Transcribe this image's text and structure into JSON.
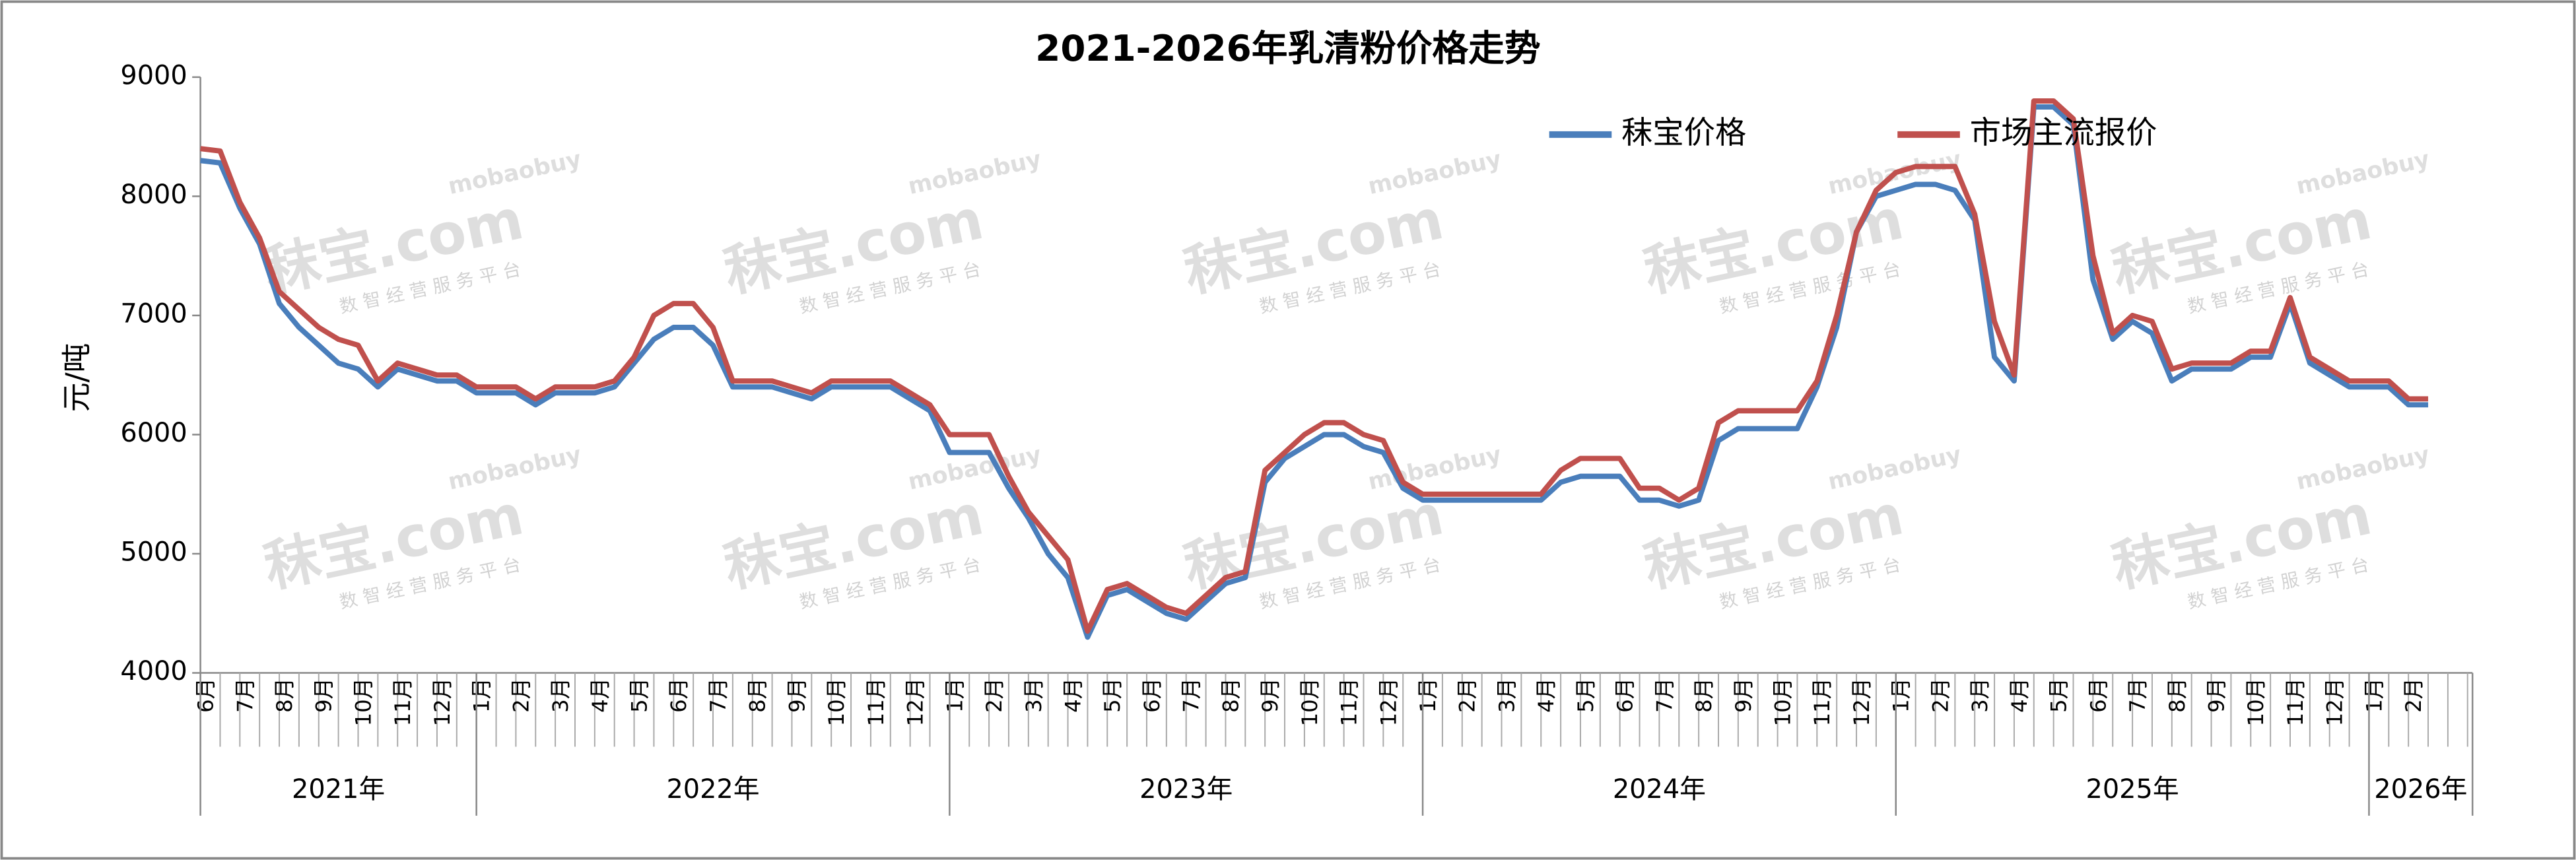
{
  "chart_data": {
    "type": "line",
    "title": "2021-2026年乳清粉价格走势",
    "y_label": "元/吨",
    "categories": [
      "6月",
      null,
      "7月",
      null,
      "8月",
      null,
      "9月",
      null,
      "10月",
      null,
      "11月",
      null,
      "12月",
      null,
      "1月",
      null,
      "2月",
      null,
      "3月",
      null,
      "4月",
      null,
      "5月",
      null,
      "6月",
      null,
      "7月",
      null,
      "8月",
      null,
      "9月",
      null,
      "10月",
      null,
      "11月",
      null,
      "12月",
      null,
      "1月",
      null,
      "2月",
      null,
      "3月",
      null,
      "4月",
      null,
      "5月",
      null,
      "6月",
      null,
      "7月",
      null,
      "8月",
      null,
      "9月",
      null,
      "10月",
      null,
      "11月",
      null,
      "12月",
      null,
      "1月",
      null,
      "2月",
      null,
      "3月",
      null,
      "4月",
      null,
      "5月",
      null,
      "6月",
      null,
      "7月",
      null,
      "8月",
      null,
      "9月",
      null,
      "10月",
      null,
      "11月",
      null,
      "12月",
      null,
      "1月",
      null,
      "2月",
      null,
      "3月",
      null,
      "4月",
      null,
      "5月",
      null,
      "6月",
      null,
      "7月",
      null,
      "8月",
      null,
      "9月",
      null,
      "10月",
      null,
      "11月",
      null,
      "12月",
      null,
      "1月",
      null,
      "2月",
      null
    ],
    "year_labels": [
      "2021年",
      "2022年",
      "2023年",
      "2024年",
      "2025年",
      "2026年"
    ],
    "series": [
      {
        "name": "秣宝价格",
        "color": "#4a7ebb",
        "values": [
          8300,
          8280,
          7900,
          7600,
          7100,
          6900,
          6750,
          6600,
          6550,
          6400,
          6550,
          6500,
          6450,
          6450,
          6350,
          6350,
          6350,
          6250,
          6350,
          6350,
          6350,
          6400,
          6600,
          6800,
          6900,
          6900,
          6750,
          6400,
          6400,
          6400,
          6350,
          6300,
          6400,
          6400,
          6400,
          6400,
          6300,
          6200,
          5850,
          5850,
          5850,
          5550,
          5300,
          5000,
          4800,
          4300,
          4650,
          4700,
          4600,
          4500,
          4450,
          4600,
          4750,
          4800,
          5600,
          5800,
          5900,
          6000,
          6000,
          5900,
          5850,
          5550,
          5450,
          5450,
          5450,
          5450,
          5450,
          5450,
          5450,
          5600,
          5650,
          5650,
          5650,
          5450,
          5450,
          5400,
          5450,
          5950,
          6050,
          6050,
          6050,
          6050,
          6400,
          6900,
          7700,
          8000,
          8050,
          8100,
          8100,
          8050,
          7800,
          6650,
          6450,
          8750,
          8750,
          8600,
          7300,
          6800,
          6950,
          6850,
          6450,
          6550,
          6550,
          6550,
          6650,
          6650,
          7100,
          6600,
          6500,
          6400,
          6400,
          6400,
          6250,
          6250
        ]
      },
      {
        "name": "市场主流报价",
        "color": "#c0504d",
        "values": [
          8400,
          8380,
          7950,
          7650,
          7200,
          7050,
          6900,
          6800,
          6750,
          6450,
          6600,
          6550,
          6500,
          6500,
          6400,
          6400,
          6400,
          6300,
          6400,
          6400,
          6400,
          6450,
          6650,
          7000,
          7100,
          7100,
          6900,
          6450,
          6450,
          6450,
          6400,
          6350,
          6450,
          6450,
          6450,
          6450,
          6350,
          6250,
          6000,
          6000,
          6000,
          5650,
          5350,
          5150,
          4950,
          4350,
          4700,
          4750,
          4650,
          4550,
          4500,
          4650,
          4800,
          4850,
          5700,
          5850,
          6000,
          6100,
          6100,
          6000,
          5950,
          5600,
          5500,
          5500,
          5500,
          5500,
          5500,
          5500,
          5500,
          5700,
          5800,
          5800,
          5800,
          5550,
          5550,
          5450,
          5550,
          6100,
          6200,
          6200,
          6200,
          6200,
          6450,
          7000,
          7700,
          8050,
          8200,
          8250,
          8250,
          8250,
          7850,
          6950,
          6500,
          8800,
          8800,
          8650,
          7500,
          6850,
          7000,
          6950,
          6550,
          6600,
          6600,
          6600,
          6700,
          6700,
          7150,
          6650,
          6550,
          6450,
          6450,
          6450,
          6300,
          6300
        ]
      }
    ],
    "ylim": [
      4000,
      9000
    ],
    "yticks": [
      4000,
      5000,
      6000,
      7000,
      8000,
      9000
    ],
    "legend": "top-right",
    "watermark": {
      "brand": "秣宝.com",
      "domain": "mobaobuy",
      "slogan": "数 智 经 营 服 务 平 台"
    }
  }
}
